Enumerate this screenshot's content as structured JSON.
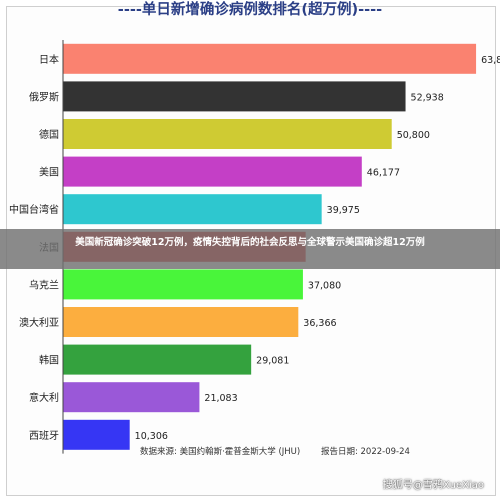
{
  "title": "----单日新增确诊病例数排名(超万例)----",
  "chart_data": {
    "type": "bar",
    "orientation": "horizontal",
    "title": "单日新增确诊病例数排名(超万例)",
    "categories": [
      "日本",
      "俄罗斯",
      "德国",
      "美国",
      "中国台湾省",
      "法国",
      "乌克兰",
      "澳大利亚",
      "韩国",
      "意大利",
      "西班牙"
    ],
    "values": [
      63838,
      52938,
      50800,
      46177,
      39975,
      37500,
      37080,
      36366,
      29081,
      21083,
      10306
    ],
    "value_labels": [
      "63,838",
      "52,938",
      "50,800",
      "46,177",
      "39,975",
      "",
      "37,080",
      "36,366",
      "29,081",
      "21,083",
      "10,306"
    ],
    "bar_colors": [
      "#fa8270",
      "#333333",
      "#cfcb33",
      "#c43fc6",
      "#2ec7cf",
      "#e63232",
      "#49f53a",
      "#fcae3f",
      "#34a23e",
      "#9a58d8",
      "#3636f4"
    ],
    "xlim": [
      0,
      68000
    ],
    "grid": false,
    "legend": "none"
  },
  "footer": {
    "source": "数据来源: 美国约翰斯·霍普金斯大学 (JHU)",
    "date": "报告日期: 2022-09-24"
  },
  "overlay_caption": "美国新冠确诊突破12万例，疫情失控背后的社会反思与全球警示美国确诊超12万例",
  "watermark": "搜狐号@雪鸦XueXiao"
}
